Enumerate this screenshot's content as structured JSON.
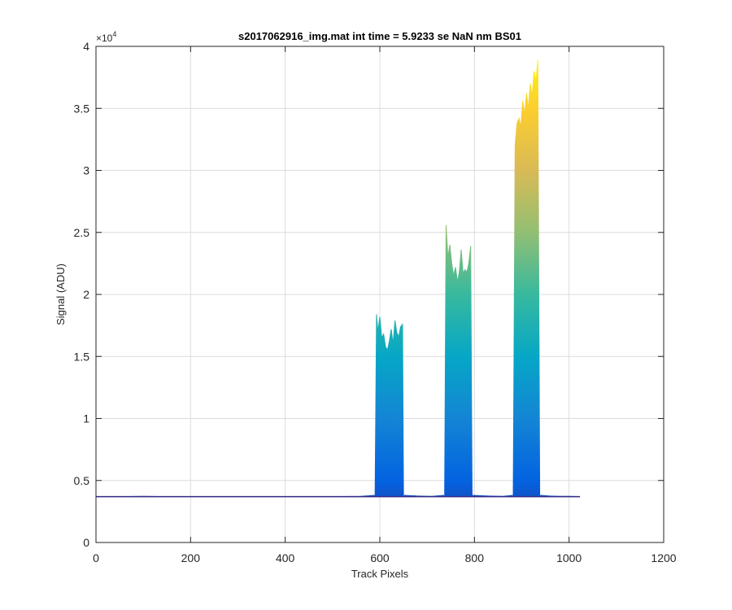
{
  "chart_data": {
    "type": "area",
    "title": "s2017062916_img.mat int time = 5.9233 se  NaN nm BS01",
    "xlabel": "Track Pixels",
    "ylabel": "Signal (ADU)",
    "xlim": [
      0,
      1200
    ],
    "ylim": [
      0,
      40000
    ],
    "xticks": [
      0,
      200,
      400,
      600,
      800,
      1000,
      1200
    ],
    "xtick_labels": [
      "0",
      "200",
      "400",
      "600",
      "800",
      "1000",
      "1200"
    ],
    "yticks": [
      0,
      5000,
      10000,
      15000,
      20000,
      25000,
      30000,
      35000,
      40000
    ],
    "ytick_labels": [
      "0",
      "0.5",
      "1",
      "1.5",
      "2",
      "2.5",
      "3",
      "3.5",
      "4"
    ],
    "y_exponent_label": "×10",
    "y_exponent_power": "4",
    "grid": true,
    "colormap": [
      "#352a87",
      "#0363e1",
      "#1485d4",
      "#06a7c6",
      "#38b99e",
      "#92bf73",
      "#d9ba56",
      "#fcce2e",
      "#f9fb0e"
    ],
    "baseline": 3700,
    "series": [
      {
        "x": [
          0,
          50,
          100,
          150,
          200,
          300,
          400,
          500,
          560,
          588
        ],
        "y": [
          3700,
          3700,
          3720,
          3700,
          3700,
          3700,
          3700,
          3700,
          3720,
          3800
        ]
      },
      {
        "x": [
          590,
          593,
          596,
          600,
          604,
          608,
          612,
          616,
          620,
          624,
          628,
          632,
          636,
          640,
          644,
          648,
          650
        ],
        "y": [
          3900,
          18400,
          17000,
          18200,
          16500,
          16800,
          15800,
          15500,
          16200,
          17200,
          16000,
          17900,
          16900,
          16600,
          17400,
          17600,
          3900
        ]
      },
      {
        "x": [
          652,
          680,
          710,
          735
        ],
        "y": [
          3800,
          3750,
          3720,
          3800
        ]
      },
      {
        "x": [
          737,
          740,
          744,
          748,
          752,
          756,
          760,
          764,
          768,
          772,
          776,
          780,
          784,
          788,
          792,
          795
        ],
        "y": [
          3900,
          25600,
          23000,
          24000,
          22500,
          21500,
          22200,
          21000,
          21800,
          23600,
          21700,
          22000,
          21800,
          22500,
          23900,
          3900
        ]
      },
      {
        "x": [
          797,
          830,
          860,
          880
        ],
        "y": [
          3800,
          3750,
          3720,
          3800
        ]
      },
      {
        "x": [
          882,
          886,
          890,
          894,
          898,
          902,
          906,
          910,
          914,
          918,
          922,
          926,
          930,
          934,
          938
        ],
        "y": [
          3900,
          32000,
          33800,
          34200,
          33500,
          35600,
          34500,
          36200,
          35000,
          37000,
          36000,
          38000,
          37200,
          38900,
          3900
        ]
      },
      {
        "x": [
          940,
          960,
          980,
          1000,
          1023
        ],
        "y": [
          3800,
          3750,
          3720,
          3720,
          3700
        ]
      }
    ]
  }
}
